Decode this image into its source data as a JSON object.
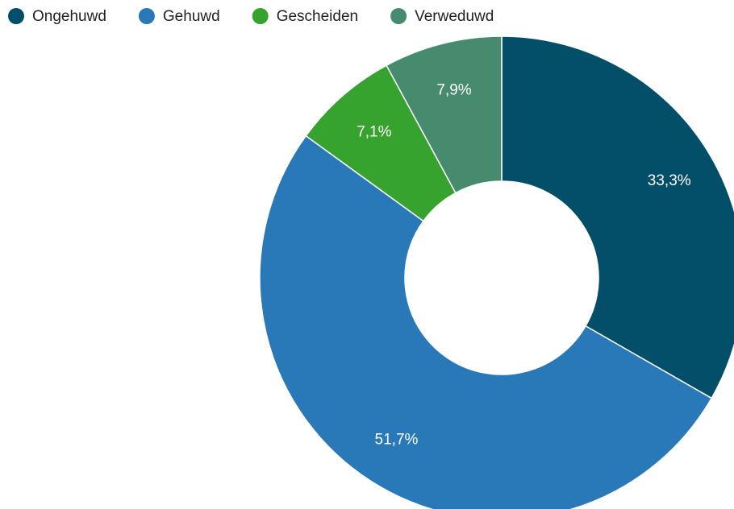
{
  "chart_data": {
    "type": "pie",
    "donut": true,
    "categories": [
      "Ongehuwd",
      "Gehuwd",
      "Gescheiden",
      "Verweduwd"
    ],
    "values": [
      33.3,
      51.7,
      7.1,
      7.9
    ],
    "value_labels": [
      "33,3%",
      "51,7%",
      "7,1%",
      "7,9%"
    ],
    "colors": [
      "#034f69",
      "#2979b8",
      "#36a32f",
      "#478b6f"
    ],
    "legend": "top-left"
  }
}
